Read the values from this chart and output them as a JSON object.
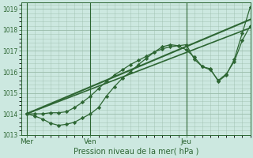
{
  "background_color": "#cce8e0",
  "grid_color": "#99bbaa",
  "line_color": "#2d6633",
  "title": "Pression niveau de la mer( hPa )",
  "x_ticks_labels": [
    "Mer",
    "Ven",
    "Jeu"
  ],
  "x_ticks_pos": [
    0,
    48,
    120
  ],
  "x_vlines": [
    0,
    48,
    120
  ],
  "xlim": [
    -4,
    168
  ],
  "ylim": [
    1013.0,
    1019.3
  ],
  "yticks": [
    1013,
    1014,
    1015,
    1016,
    1017,
    1018,
    1019
  ],
  "series": [
    {
      "x": [
        0,
        168
      ],
      "y": [
        1014.0,
        1018.5
      ],
      "marker": null,
      "lw": 1.5
    },
    {
      "x": [
        0,
        168
      ],
      "y": [
        1014.0,
        1018.1
      ],
      "marker": null,
      "lw": 1.2
    },
    {
      "x": [
        0,
        6,
        12,
        18,
        24,
        30,
        36,
        42,
        48,
        54,
        60,
        66,
        72,
        78,
        84,
        90,
        96,
        102,
        108,
        114,
        120,
        126,
        132,
        138,
        144,
        150,
        156,
        162,
        168
      ],
      "y": [
        1014.0,
        1013.9,
        1013.75,
        1013.55,
        1013.45,
        1013.5,
        1013.6,
        1013.8,
        1014.0,
        1014.3,
        1014.85,
        1015.3,
        1015.7,
        1016.0,
        1016.35,
        1016.65,
        1016.95,
        1017.2,
        1017.3,
        1017.25,
        1017.05,
        1016.7,
        1016.25,
        1016.1,
        1015.6,
        1015.9,
        1016.5,
        1017.5,
        1018.2
      ],
      "marker": "D",
      "markersize": 2.2,
      "lw": 0.9
    },
    {
      "x": [
        0,
        6,
        12,
        18,
        24,
        30,
        36,
        42,
        48,
        54,
        60,
        66,
        72,
        78,
        84,
        90,
        96,
        102,
        108,
        114,
        120,
        126,
        132,
        138,
        144,
        150,
        156,
        162,
        168
      ],
      "y": [
        1014.0,
        1014.0,
        1014.0,
        1014.05,
        1014.05,
        1014.1,
        1014.3,
        1014.55,
        1014.85,
        1015.2,
        1015.55,
        1015.85,
        1016.1,
        1016.35,
        1016.55,
        1016.75,
        1016.95,
        1017.1,
        1017.2,
        1017.25,
        1017.3,
        1016.6,
        1016.25,
        1016.15,
        1015.55,
        1015.85,
        1016.6,
        1017.85,
        1019.1
      ],
      "marker": "D",
      "markersize": 2.2,
      "lw": 0.9
    }
  ]
}
